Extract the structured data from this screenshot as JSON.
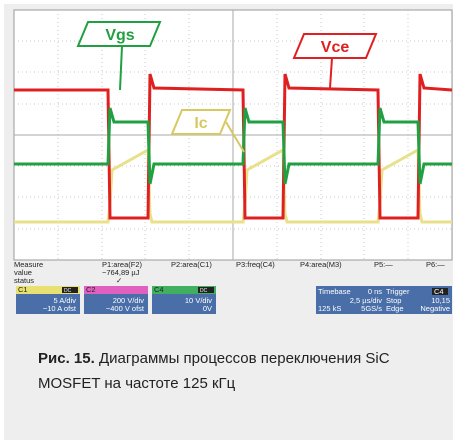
{
  "labels": {
    "vgs": "Vgs",
    "vce": "Vce",
    "ic": "Ic"
  },
  "measure": {
    "header": [
      "Measure",
      "value",
      "status"
    ],
    "params": [
      {
        "name": "P1:area(F2)",
        "value": "−764,89 µJ",
        "status": "✓"
      },
      {
        "name": "P2:area(C1)"
      },
      {
        "name": "P3:freq(C4)"
      },
      {
        "name": "P4:area(M3)"
      },
      {
        "name": "P5:—"
      },
      {
        "name": "P6:—"
      }
    ]
  },
  "channels": [
    {
      "name": "C1",
      "coupling": "DC",
      "scale": "5 A/div",
      "offset": "−10 A ofst"
    },
    {
      "name": "C2",
      "scale": "200 V/div",
      "offset": "−400 V ofst"
    },
    {
      "name": "C4",
      "coupling": "DC",
      "scale": "10 V/div",
      "offset": "0V"
    }
  ],
  "timebase": {
    "label": "Timebase",
    "delay": "0 ns",
    "scale": "2,5 µs/div",
    "samples": "125 kS",
    "rate": "5GS/s"
  },
  "trigger": {
    "label": "Trigger",
    "source": "C4",
    "mode": "Stop",
    "level": "10,15",
    "type": "Edge",
    "slope": "Negative"
  },
  "caption": {
    "number": "Рис. 15.",
    "text": "Диаграммы процессов переключения SiC MOSFET на частоте 125 кГц"
  }
}
